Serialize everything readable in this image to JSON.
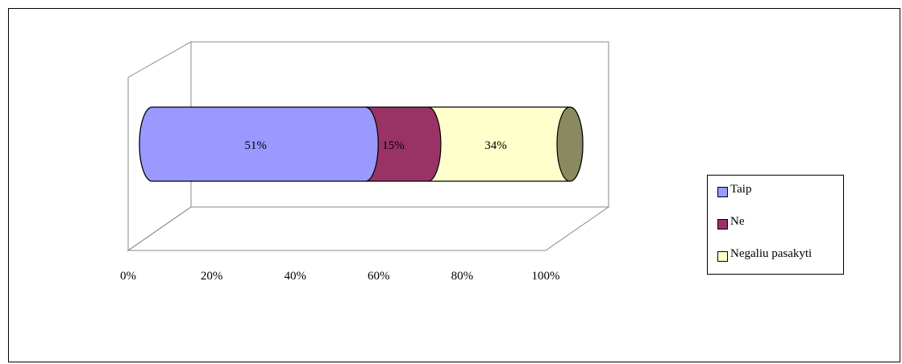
{
  "chart_data": {
    "type": "bar",
    "orientation": "horizontal",
    "stacked": "100%",
    "style": "3d-cylinder",
    "categories": [
      ""
    ],
    "series": [
      {
        "name": "Taip",
        "values": [
          51
        ],
        "label": "51%",
        "color": "#9999ff"
      },
      {
        "name": "Ne",
        "values": [
          15
        ],
        "label": "15%",
        "color": "#993366"
      },
      {
        "name": "Negaliu pasakyti",
        "values": [
          34
        ],
        "label": "34%",
        "color": "#ffffcc"
      }
    ],
    "xlim": [
      0,
      100
    ],
    "xticks": [
      {
        "value": 0,
        "label": "0%"
      },
      {
        "value": 20,
        "label": "20%"
      },
      {
        "value": 40,
        "label": "40%"
      },
      {
        "value": 60,
        "label": "60%"
      },
      {
        "value": 80,
        "label": "80%"
      },
      {
        "value": 100,
        "label": "100%"
      }
    ],
    "grid": false,
    "legend_position": "right"
  }
}
